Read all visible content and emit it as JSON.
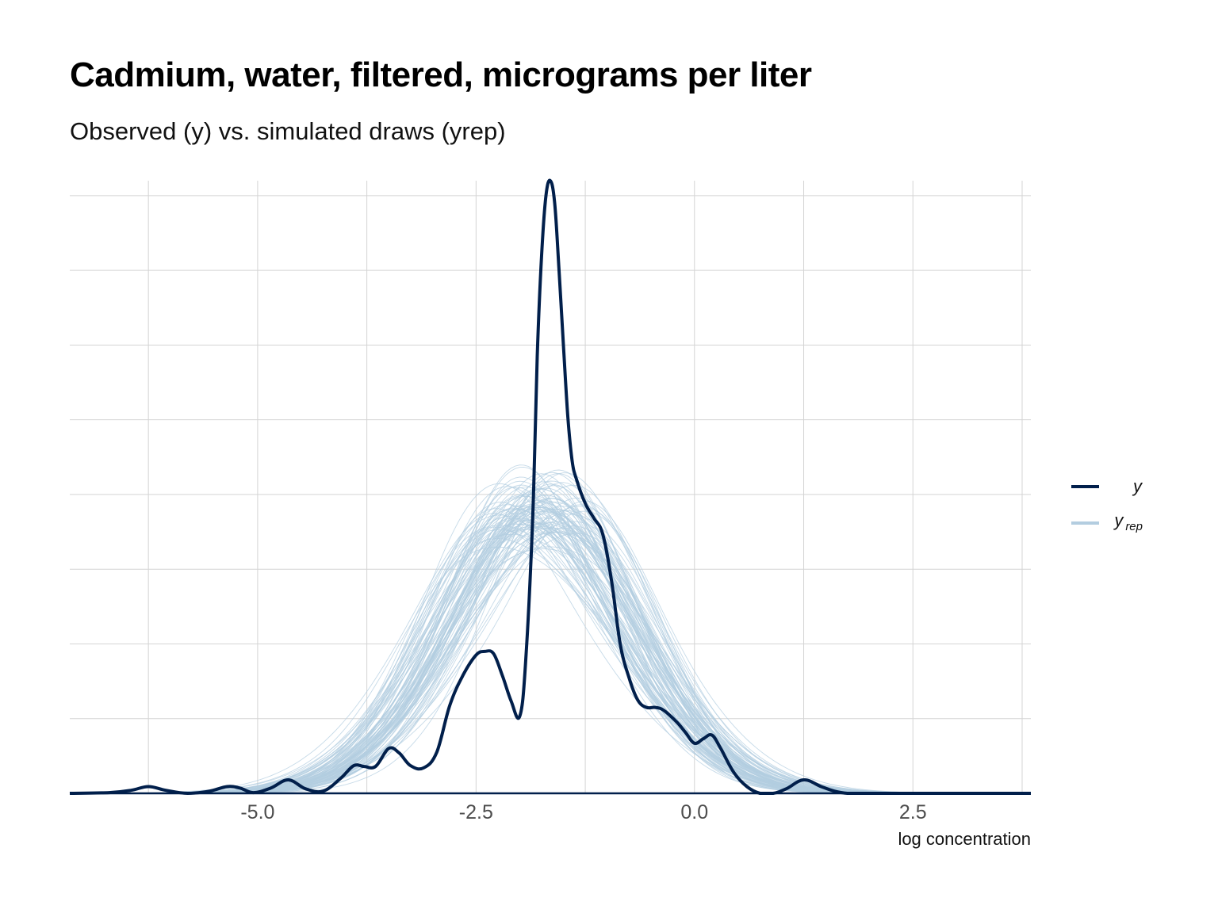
{
  "chart_data": {
    "type": "line",
    "title": "Cadmium, water, filtered, micrograms per liter",
    "subtitle": "Observed (y) vs. simulated draws (yrep)",
    "xlabel": "log concentration",
    "ylabel": "",
    "xlim": [
      -7.15,
      3.85
    ],
    "ylim": [
      0,
      0.82
    ],
    "x_ticks": [
      -5.0,
      -2.5,
      0.0,
      2.5
    ],
    "x_tick_labels": [
      "-5.0",
      "-2.5",
      "0.0",
      "2.5"
    ],
    "y_ticks_shown": false,
    "grid": true,
    "legend": {
      "position": "right",
      "items": [
        {
          "label": "y",
          "subscript": ""
        },
        {
          "label": "y",
          "subscript": "rep"
        }
      ]
    },
    "colors": {
      "y": "#011f4b",
      "yrep": "#b3cde0",
      "grid": "#d4d4d4"
    },
    "observed": {
      "x": [
        -7.15,
        -6.7,
        -6.45,
        -6.25,
        -6.05,
        -5.8,
        -5.55,
        -5.35,
        -5.2,
        -5.05,
        -4.85,
        -4.65,
        -4.45,
        -4.25,
        -4.05,
        -3.9,
        -3.78,
        -3.65,
        -3.5,
        -3.38,
        -3.25,
        -3.1,
        -2.95,
        -2.8,
        -2.65,
        -2.5,
        -2.4,
        -2.3,
        -2.2,
        -2.1,
        -2.0,
        -1.93,
        -1.85,
        -1.8,
        -1.75,
        -1.7,
        -1.65,
        -1.6,
        -1.55,
        -1.5,
        -1.45,
        -1.4,
        -1.35,
        -1.25,
        -1.15,
        -1.05,
        -0.95,
        -0.85,
        -0.75,
        -0.65,
        -0.55,
        -0.45,
        -0.35,
        -0.2,
        -0.1,
        0.0,
        0.1,
        0.2,
        0.3,
        0.45,
        0.6,
        0.75,
        0.9,
        1.05,
        1.25,
        1.45,
        1.6,
        1.75,
        1.95,
        2.2,
        3.85
      ],
      "y": [
        0.0,
        0.001,
        0.004,
        0.009,
        0.004,
        0.0,
        0.003,
        0.009,
        0.007,
        0.001,
        0.007,
        0.018,
        0.006,
        0.003,
        0.02,
        0.037,
        0.036,
        0.036,
        0.06,
        0.054,
        0.037,
        0.034,
        0.055,
        0.118,
        0.158,
        0.185,
        0.19,
        0.187,
        0.158,
        0.124,
        0.103,
        0.18,
        0.375,
        0.585,
        0.72,
        0.8,
        0.82,
        0.79,
        0.7,
        0.6,
        0.505,
        0.445,
        0.42,
        0.388,
        0.368,
        0.347,
        0.285,
        0.2,
        0.155,
        0.125,
        0.115,
        0.115,
        0.111,
        0.095,
        0.081,
        0.067,
        0.073,
        0.078,
        0.06,
        0.028,
        0.009,
        0.0,
        0.0,
        0.006,
        0.018,
        0.009,
        0.003,
        0.0,
        0.0,
        0.0,
        0.0
      ]
    },
    "replicated": {
      "description": "",
      "n_draws": 100,
      "approx_mean": -1.75,
      "approx_sd_range": [
        0.95,
        1.25
      ],
      "peak_density_range": [
        0.3,
        0.4
      ]
    }
  }
}
